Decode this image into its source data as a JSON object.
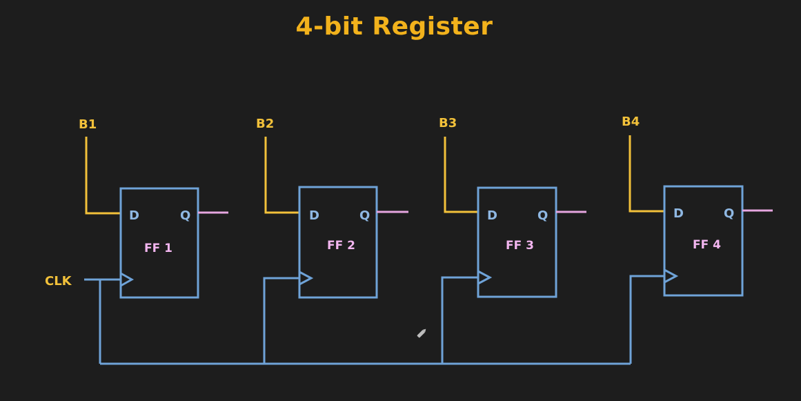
{
  "title": "4-bit Register",
  "clock_label": "CLK",
  "flip_flops": [
    {
      "name": "FF 1",
      "input": "B1",
      "d_pin": "D",
      "q_pin": "Q"
    },
    {
      "name": "FF 2",
      "input": "B2",
      "d_pin": "D",
      "q_pin": "Q"
    },
    {
      "name": "FF 3",
      "input": "B3",
      "d_pin": "D",
      "q_pin": "Q"
    },
    {
      "name": "FF 4",
      "input": "B4",
      "d_pin": "D",
      "q_pin": "Q"
    }
  ],
  "colors": {
    "background": "#1d1d1d",
    "title": "#f2b21c",
    "data_wire": "#f2c13a",
    "clock_wire": "#6fa3d8",
    "output_wire": "#e6a6e0",
    "ff_label": "#f3b6f0"
  },
  "icons": [
    "pencil-cursor-icon"
  ]
}
